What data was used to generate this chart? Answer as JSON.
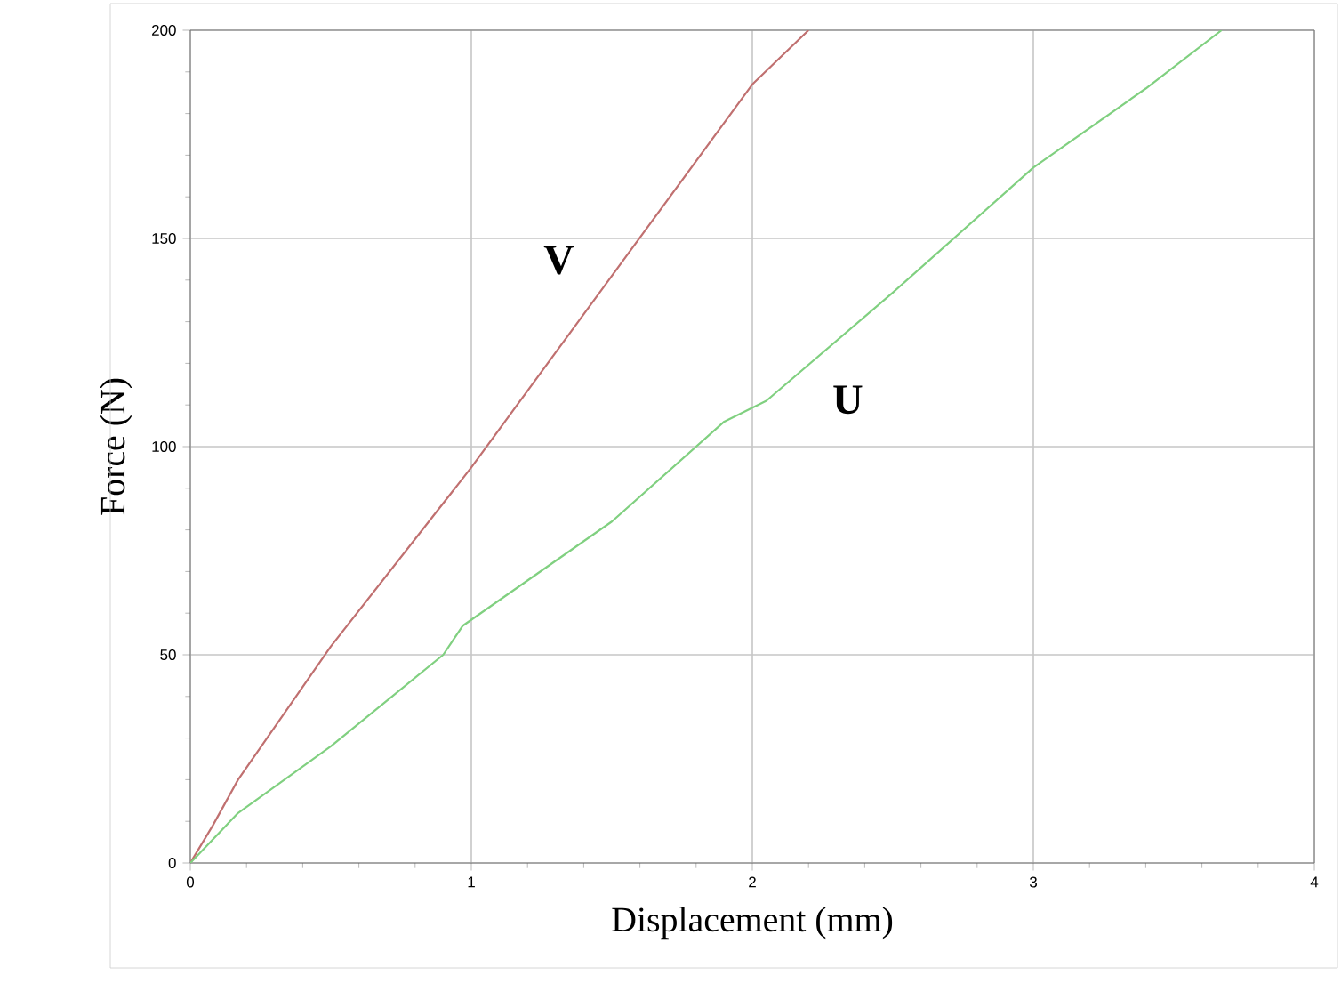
{
  "chart_data": {
    "type": "line",
    "xlabel": "Displacement (mm)",
    "ylabel": "Force (N)",
    "xlim": [
      0,
      4
    ],
    "ylim": [
      0,
      200
    ],
    "xticks": [
      0,
      1,
      2,
      3,
      4
    ],
    "yticks": [
      0,
      50,
      100,
      150,
      200
    ],
    "grid": true,
    "legend": false,
    "marker": "none",
    "line_style": "solid",
    "series": [
      {
        "name": "V",
        "color": "#c07070",
        "x": [
          0,
          0.08,
          0.17,
          0.5,
          1,
          1.5,
          2,
          2.2
        ],
        "values": [
          0,
          9,
          20,
          52,
          95,
          141,
          187,
          200
        ]
      },
      {
        "name": "U",
        "color": "#80d080",
        "x": [
          0,
          0.17,
          0.5,
          0.9,
          0.97,
          1.5,
          1.9,
          2.05,
          2.5,
          3,
          3.4,
          3.67
        ],
        "values": [
          0,
          12,
          28,
          50,
          57,
          82,
          106,
          111,
          137,
          167,
          186,
          200
        ]
      }
    ]
  }
}
